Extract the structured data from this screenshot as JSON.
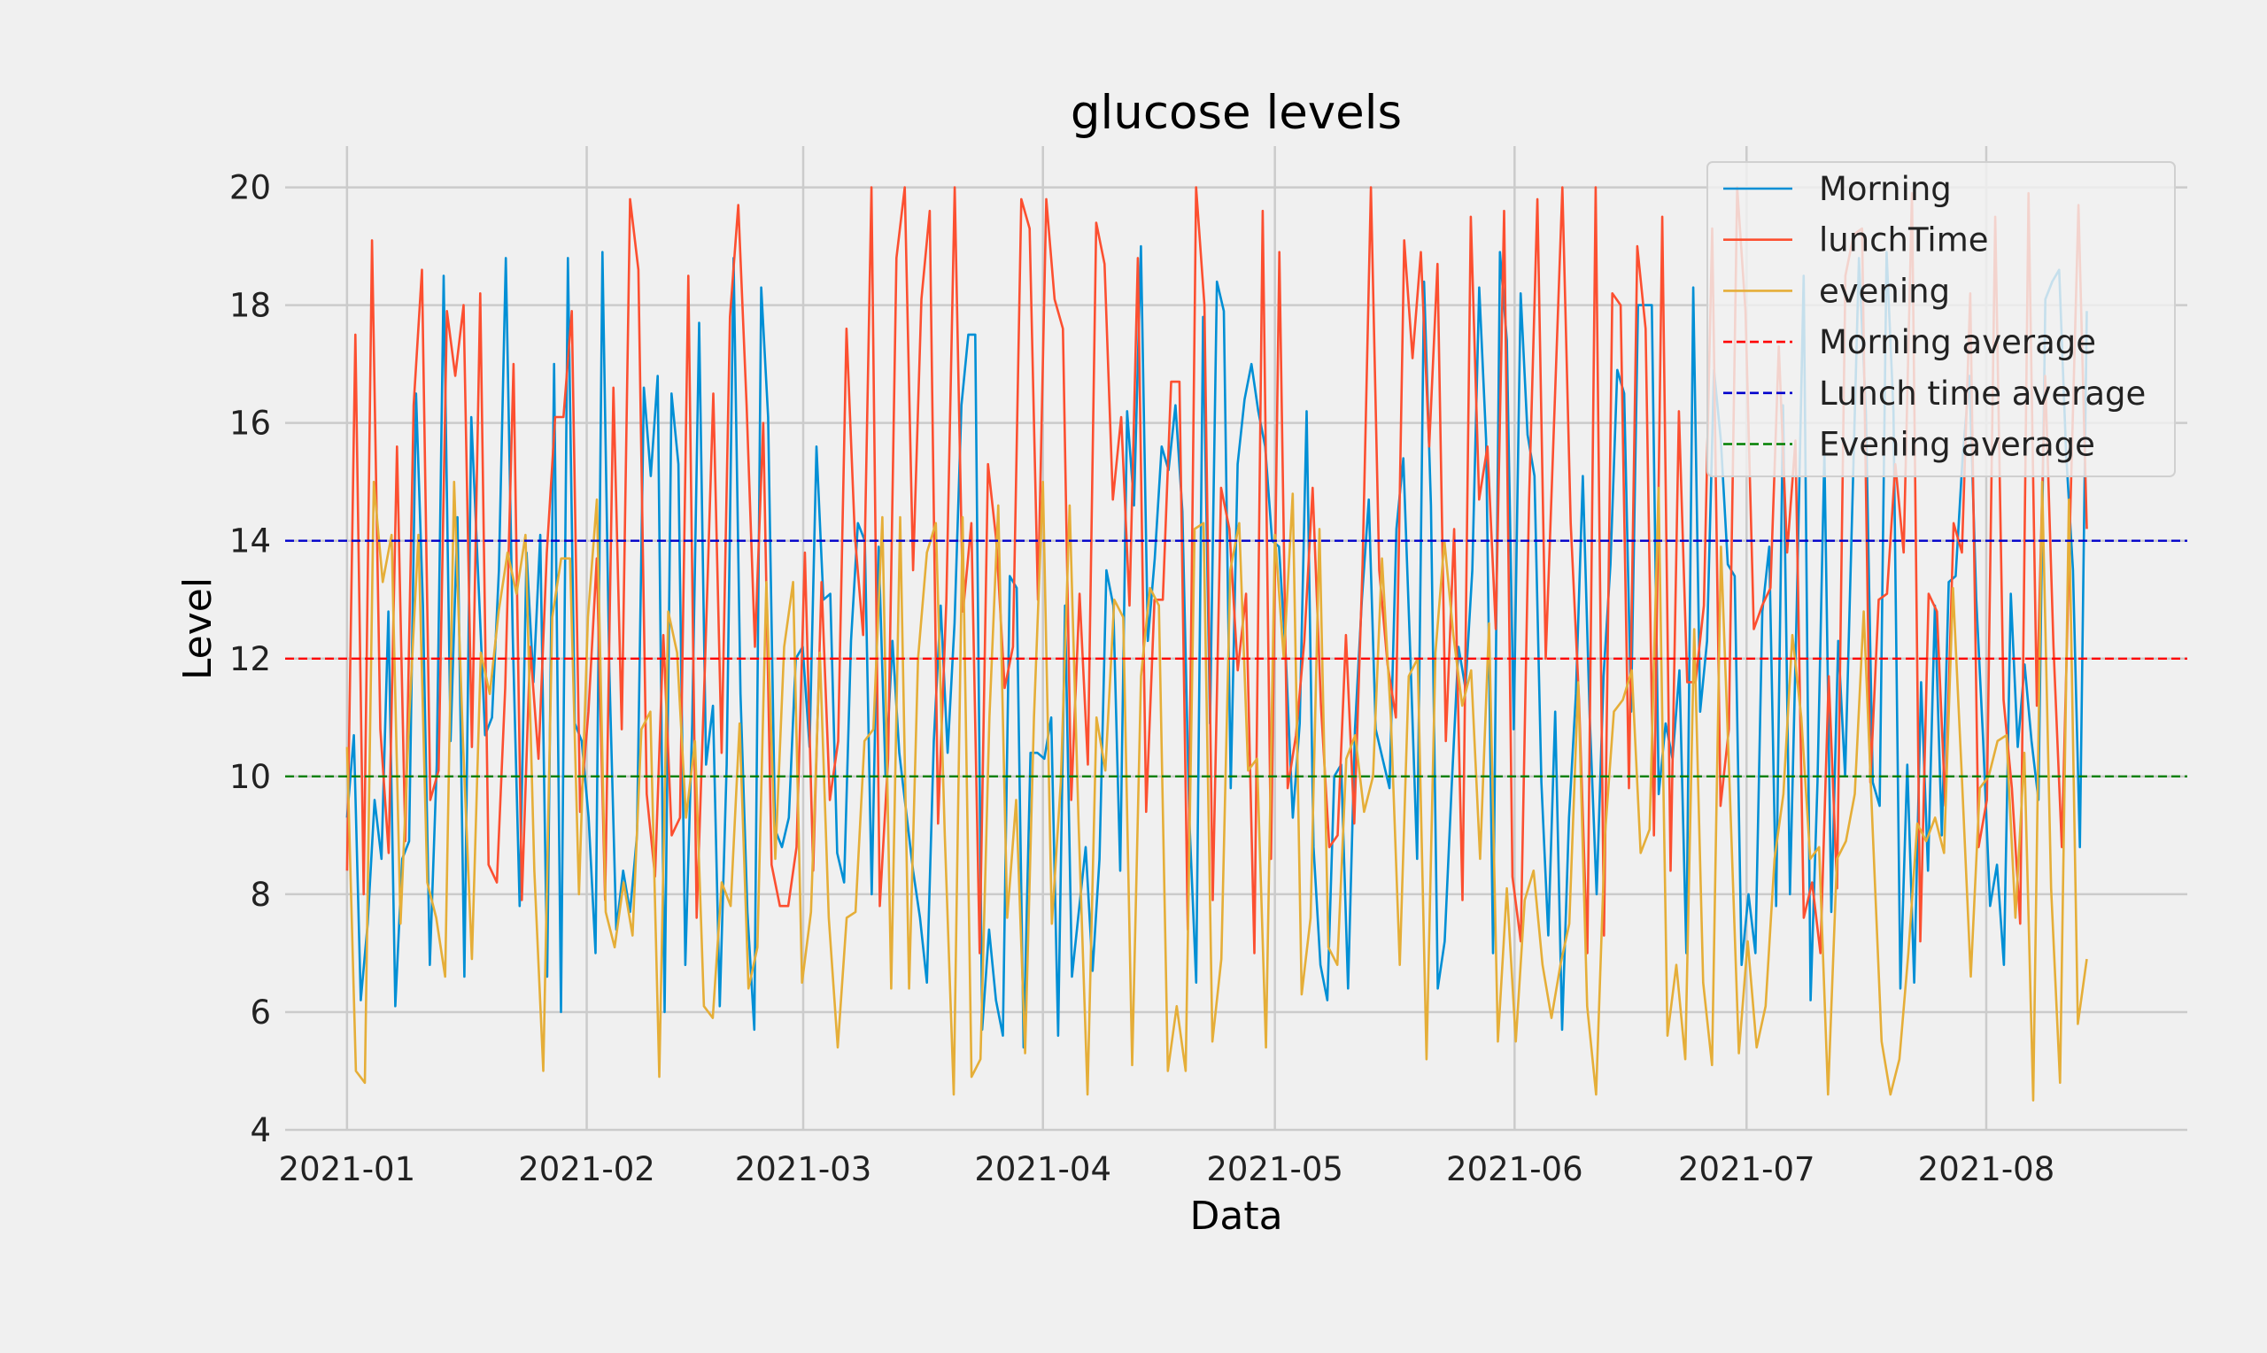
{
  "chart_data": {
    "type": "line",
    "title": "glucose levels",
    "xlabel": "Data",
    "ylabel": "Level",
    "x_start": "2021-01-01",
    "x_end": "2021-08-14",
    "xlim": [
      "2020-12-24",
      "2021-08-27"
    ],
    "ylim": [
      4,
      20.7
    ],
    "grid": true,
    "legend_position": "top-right",
    "x_ticks": [
      "2021-01",
      "2021-02",
      "2021-03",
      "2021-04",
      "2021-05",
      "2021-06",
      "2021-07",
      "2021-08"
    ],
    "y_ticks": [
      4,
      6,
      8,
      10,
      12,
      14,
      16,
      18,
      20
    ],
    "series": [
      {
        "name": "Morning",
        "color": "#008fd5",
        "values": [
          9.3,
          10.7,
          6.2,
          7.5,
          9.6,
          8.6,
          12.8,
          6.1,
          8.6,
          8.9,
          16.5,
          12.9,
          6.8,
          10.2,
          18.5,
          10.6,
          14.4,
          6.6,
          16.1,
          13.4,
          10.7,
          11.0,
          13.5,
          18.8,
          12.4,
          7.8,
          13.8,
          11.6,
          14.1,
          6.6,
          17.0,
          6.0,
          18.8,
          10.9,
          10.6,
          9.3,
          7.0,
          18.9,
          11.8,
          7.4,
          8.4,
          7.7,
          9.0,
          16.6,
          15.1,
          16.8,
          6.0,
          16.5,
          15.3,
          6.8,
          10.9,
          17.7,
          10.2,
          11.2,
          6.1,
          10.2,
          18.8,
          11.4,
          7.7,
          5.7,
          18.3,
          16.1,
          9.1,
          8.8,
          9.3,
          12.0,
          12.2,
          10.5,
          15.6,
          13.0,
          13.1,
          8.7,
          8.2,
          12.3,
          14.3,
          14.0,
          8.0,
          13.9,
          10.0,
          12.3,
          10.4,
          9.4,
          8.4,
          7.6,
          6.5,
          10.6,
          12.9,
          10.4,
          12.6,
          16.3,
          17.5,
          17.5,
          5.7,
          7.4,
          6.2,
          5.6,
          13.4,
          13.2,
          5.4,
          10.4,
          10.4,
          10.3,
          11.0,
          5.6,
          12.9,
          6.6,
          7.7,
          8.8,
          6.7,
          8.6,
          13.5,
          12.9,
          8.4,
          16.2,
          14.6,
          19.0,
          12.3,
          13.7,
          15.6,
          15.2,
          16.3,
          14.5,
          9.3,
          6.5,
          17.8,
          10.9,
          18.4,
          17.9,
          9.8,
          15.3,
          16.4,
          17.0,
          16.2,
          15.6,
          14.0,
          13.9,
          12.0,
          9.3,
          10.9,
          16.2,
          8.8,
          6.8,
          6.2,
          10.0,
          10.2,
          6.4,
          10.8,
          13.0,
          14.7,
          10.8,
          10.3,
          9.8,
          14.2,
          15.4,
          12.1,
          8.6,
          18.4,
          14.6,
          6.4,
          7.2,
          9.8,
          12.2,
          11.5,
          13.5,
          18.3,
          15.7,
          7.0,
          18.9,
          17.4,
          10.8,
          18.2,
          15.8,
          15.1,
          9.9,
          7.3,
          11.1,
          5.7,
          9.3,
          11.4,
          15.1,
          11.0,
          8.0,
          11.7,
          13.6,
          16.9,
          16.5,
          11.1,
          18.0,
          18.0,
          18.0,
          9.7,
          10.9,
          10.3,
          11.8,
          7.0,
          18.3,
          11.1,
          12.3,
          16.9,
          15.7,
          13.6,
          13.4,
          6.8,
          8.0,
          7.0,
          12.8,
          13.9,
          7.8,
          16.3,
          8.0,
          12.9,
          18.5,
          6.2,
          9.9,
          15.5,
          7.7,
          12.3,
          10.0,
          14.4,
          18.8,
          16.2,
          9.9,
          9.5,
          18.9,
          16.2,
          6.4,
          10.2,
          6.5,
          11.6,
          8.4,
          12.9,
          9.0,
          13.3,
          13.4,
          15.4,
          16.8,
          13.0,
          10.6,
          7.8,
          8.5,
          6.8,
          13.1,
          10.5,
          11.9,
          10.6,
          9.6,
          18.1,
          18.4,
          18.6,
          15.5,
          13.5,
          8.8,
          17.9
        ]
      },
      {
        "name": "lunchTime",
        "color": "#fc4f30",
        "values": [
          8.4,
          17.5,
          8.0,
          19.1,
          10.8,
          8.7,
          15.6,
          8.9,
          16.3,
          18.6,
          9.6,
          10.1,
          17.9,
          16.8,
          18.0,
          10.5,
          18.2,
          8.5,
          8.2,
          11.5,
          17.0,
          7.9,
          12.2,
          10.3,
          13.8,
          16.1,
          16.1,
          17.9,
          9.4,
          11.1,
          13.7,
          7.9,
          16.6,
          10.8,
          19.8,
          18.6,
          9.7,
          8.3,
          12.4,
          9.0,
          9.3,
          18.5,
          7.6,
          11.9,
          16.5,
          10.4,
          17.8,
          19.7,
          16.3,
          12.2,
          16.0,
          8.5,
          7.8,
          7.8,
          8.8,
          13.8,
          8.4,
          13.3,
          9.6,
          10.6,
          17.6,
          14.1,
          12.4,
          20.0,
          7.8,
          10.3,
          18.8,
          20.0,
          13.5,
          18.1,
          19.6,
          9.2,
          13.0,
          20.0,
          12.8,
          14.3,
          7.0,
          15.3,
          14.0,
          11.5,
          12.2,
          19.8,
          19.3,
          13.0,
          19.8,
          18.1,
          17.6,
          9.6,
          13.1,
          10.2,
          19.4,
          18.7,
          14.7,
          16.1,
          12.9,
          18.8,
          9.4,
          13.0,
          13.0,
          16.7,
          16.7,
          7.4,
          20.0,
          18.0,
          7.9,
          14.9,
          14.2,
          11.8,
          13.1,
          7.0,
          19.6,
          8.6,
          18.9,
          9.8,
          10.7,
          12.3,
          14.9,
          11.2,
          8.8,
          9.0,
          12.4,
          9.2,
          13.6,
          20.0,
          13.5,
          11.9,
          11.0,
          19.1,
          17.1,
          18.9,
          15.6,
          18.7,
          10.6,
          14.2,
          7.9,
          19.5,
          14.7,
          15.6,
          12.5,
          19.6,
          8.3,
          7.2,
          14.7,
          19.8,
          12.0,
          16.0,
          20.0,
          14.3,
          11.3,
          7.0,
          20.0,
          7.3,
          18.2,
          18.0,
          9.8,
          19.0,
          17.6,
          9.0,
          19.5,
          8.4,
          16.2,
          11.6,
          11.6,
          12.9,
          19.3,
          9.5,
          10.8,
          20.0,
          17.9,
          12.5,
          12.9,
          13.2,
          17.3,
          13.8,
          15.7,
          7.6,
          8.2,
          7.0,
          11.7,
          8.1,
          18.5,
          19.2,
          19.3,
          9.9,
          13.0,
          13.1,
          15.3,
          13.8,
          19.9,
          7.2,
          13.1,
          12.8,
          9.5,
          14.3,
          13.8,
          18.2,
          8.8,
          9.6,
          19.5,
          11.3,
          9.8,
          7.5,
          19.9,
          11.2,
          16.8,
          12.2,
          8.8,
          14.4,
          19.7,
          14.2
        ]
      },
      {
        "name": "evening",
        "color": "#e5ae38",
        "values": [
          10.5,
          5.0,
          4.8,
          15.0,
          13.3,
          14.1,
          7.5,
          11.1,
          14.1,
          8.2,
          7.6,
          6.6,
          15.0,
          10.6,
          6.9,
          12.1,
          11.4,
          12.8,
          13.8,
          13.1,
          14.1,
          8.4,
          5.0,
          12.7,
          13.7,
          13.7,
          8.0,
          12.7,
          14.7,
          7.7,
          7.1,
          8.2,
          7.3,
          10.8,
          11.1,
          4.9,
          12.8,
          12.1,
          9.3,
          10.6,
          6.1,
          5.9,
          8.2,
          7.8,
          10.9,
          6.4,
          7.1,
          13.3,
          8.6,
          12.2,
          13.3,
          6.5,
          7.7,
          12.1,
          7.6,
          5.4,
          7.6,
          7.7,
          10.6,
          10.8,
          14.4,
          6.4,
          14.4,
          6.4,
          12.0,
          13.8,
          14.3,
          9.0,
          4.6,
          14.4,
          4.9,
          5.2,
          11.0,
          14.6,
          7.6,
          9.6,
          5.3,
          11.0,
          15.0,
          7.5,
          9.9,
          14.6,
          9.2,
          4.6,
          11.0,
          10.1,
          13.0,
          12.7,
          5.1,
          11.7,
          13.2,
          12.9,
          5.0,
          6.1,
          5.0,
          14.2,
          14.3,
          5.5,
          6.9,
          13.5,
          14.3,
          10.1,
          10.3,
          5.4,
          14.1,
          12.0,
          14.8,
          6.3,
          7.6,
          14.2,
          7.1,
          6.8,
          10.3,
          10.7,
          9.4,
          10.0,
          13.7,
          11.0,
          6.8,
          11.7,
          12.0,
          5.2,
          12.1,
          14.0,
          12.4,
          11.2,
          11.8,
          8.6,
          12.6,
          5.5,
          8.1,
          5.5,
          7.9,
          8.4,
          6.8,
          5.9,
          6.8,
          7.5,
          11.6,
          6.1,
          4.6,
          9.0,
          11.1,
          11.3,
          11.8,
          8.7,
          9.1,
          14.9,
          5.6,
          6.8,
          5.2,
          12.5,
          6.5,
          5.1,
          13.9,
          9.7,
          5.3,
          7.2,
          5.4,
          6.1,
          8.6,
          9.7,
          12.4,
          11.0,
          8.6,
          8.8,
          4.6,
          8.6,
          8.9,
          9.7,
          12.8,
          9.1,
          5.5,
          4.6,
          5.2,
          7.0,
          9.2,
          8.9,
          9.3,
          8.7,
          13.2,
          10.0,
          6.6,
          9.8,
          10.0,
          10.6,
          10.7,
          7.6,
          10.4,
          4.5,
          15.0,
          8.1,
          4.8,
          14.7,
          5.8,
          6.9
        ]
      }
    ],
    "reference_lines": [
      {
        "name": "Morning average",
        "value": 12,
        "color": "#ff0000",
        "style": "dashed"
      },
      {
        "name": "Lunch time average",
        "value": 14,
        "color": "#0000cc",
        "style": "dashed"
      },
      {
        "name": "Evening average",
        "value": 10,
        "color": "#008000",
        "style": "dashed"
      }
    ]
  }
}
